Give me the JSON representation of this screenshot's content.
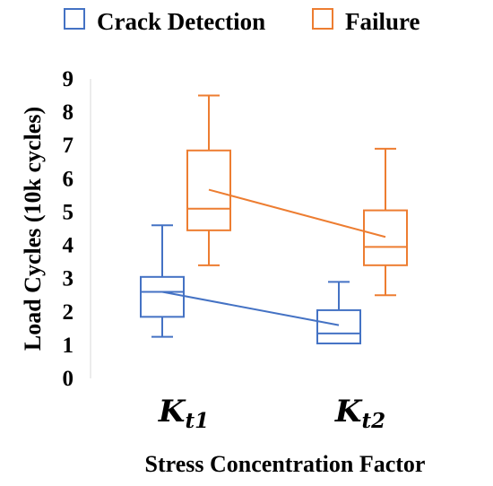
{
  "chart_data": {
    "type": "box",
    "xlabel": "Stress Concentration Factor",
    "ylabel": "Load Cycles (10k cycles)",
    "ylim": [
      0,
      9
    ],
    "yticks": [
      "0",
      "1",
      "2",
      "3",
      "4",
      "5",
      "6",
      "7",
      "8",
      "9"
    ],
    "categories": [
      {
        "main": "K",
        "sub": "t1"
      },
      {
        "main": "K",
        "sub": "t2"
      }
    ],
    "legend": {
      "position": "top"
    },
    "series": [
      {
        "name": "Crack Detection",
        "color": "#4472C4",
        "boxes": [
          {
            "min": 1.25,
            "q1": 1.85,
            "median": 2.6,
            "q3": 3.05,
            "max": 4.6,
            "mean": 2.6
          },
          {
            "min": 1.05,
            "q1": 1.05,
            "median": 1.35,
            "q3": 2.05,
            "max": 2.9,
            "mean": 1.6
          }
        ]
      },
      {
        "name": "Failure",
        "color": "#ED7D31",
        "boxes": [
          {
            "min": 3.4,
            "q1": 4.45,
            "median": 5.1,
            "q3": 6.85,
            "max": 8.5,
            "mean": 5.67
          },
          {
            "min": 2.5,
            "q1": 3.4,
            "median": 3.95,
            "q3": 5.05,
            "max": 6.9,
            "mean": 4.25
          }
        ]
      }
    ]
  }
}
